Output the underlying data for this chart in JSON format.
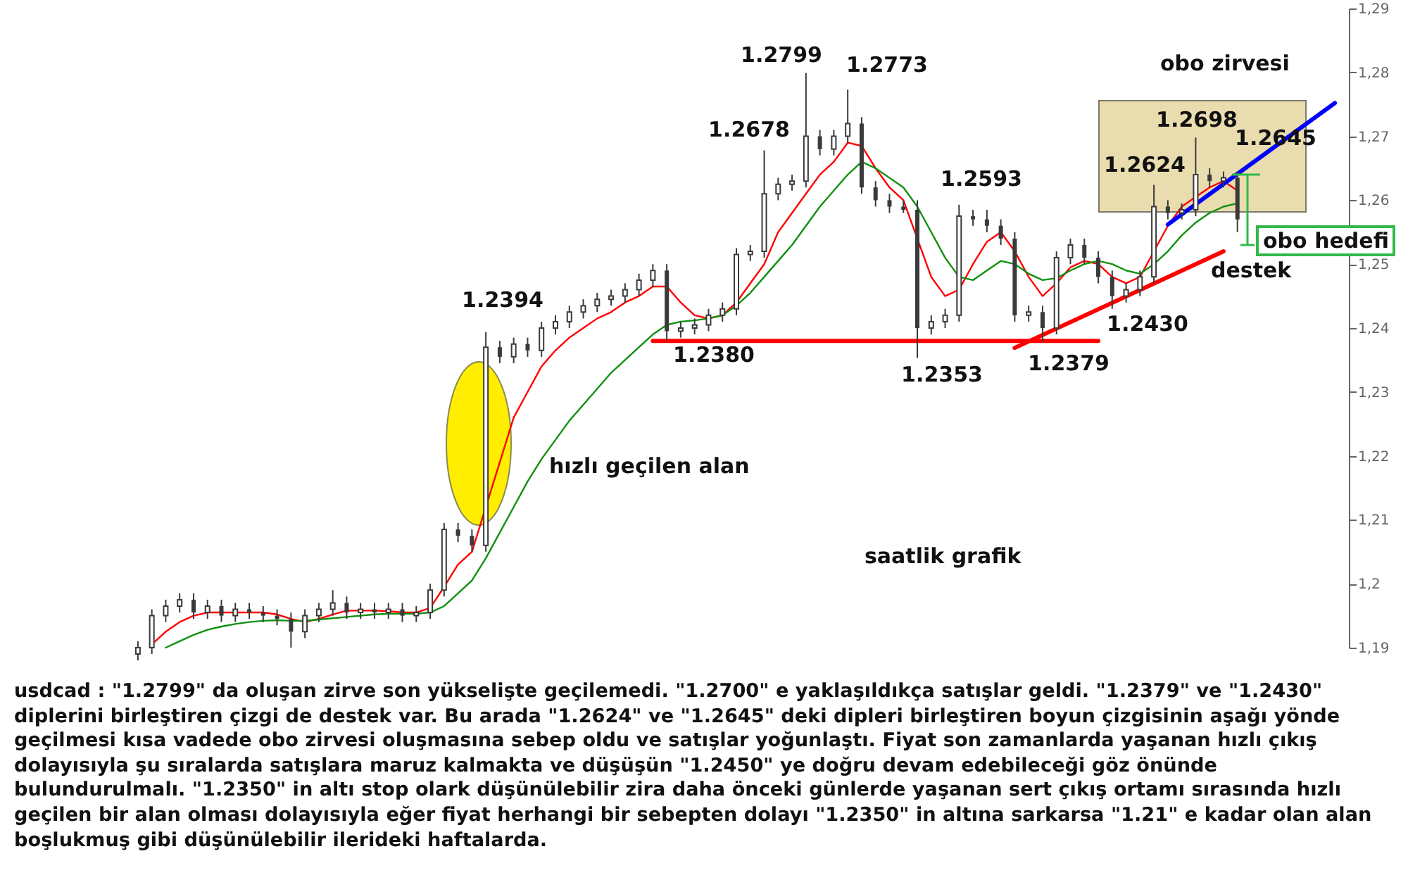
{
  "chart_data": {
    "type": "candlestick",
    "color": "#3a3a3a",
    "tick_labels": "y",
    "categories": [
      null,
      null,
      null,
      null,
      null,
      null,
      null,
      null,
      null,
      null,
      null,
      null,
      null,
      null,
      null,
      null,
      null,
      null,
      null,
      null,
      null,
      null,
      null,
      null,
      null,
      null,
      null,
      null,
      null,
      null,
      null,
      null,
      null,
      null,
      null,
      null,
      null,
      null,
      null,
      null,
      null,
      null,
      null,
      null,
      null,
      null,
      null,
      null,
      null,
      null,
      null,
      null,
      null,
      null,
      null,
      null,
      null,
      null,
      null,
      null,
      null,
      null,
      null,
      null,
      null,
      null,
      null,
      null,
      null,
      null,
      null,
      null,
      null,
      null,
      null,
      null,
      null,
      null,
      null,
      null,
      null,
      null,
      null,
      null,
      null,
      null,
      null
    ],
    "ohlc": [
      [
        1.189,
        1.191,
        1.188,
        1.19
      ],
      [
        1.19,
        1.196,
        1.189,
        1.195
      ],
      [
        1.195,
        1.1975,
        1.194,
        1.1965
      ],
      [
        1.1965,
        1.1985,
        1.1955,
        1.1975
      ],
      [
        1.1975,
        1.1985,
        1.1945,
        1.1955
      ],
      [
        1.1955,
        1.1975,
        1.1945,
        1.1965
      ],
      [
        1.1965,
        1.1975,
        1.194,
        1.195
      ],
      [
        1.195,
        1.197,
        1.194,
        1.196
      ],
      [
        1.196,
        1.197,
        1.1945,
        1.1955
      ],
      [
        1.1955,
        1.1965,
        1.194,
        1.195
      ],
      [
        1.195,
        1.196,
        1.1935,
        1.1945
      ],
      [
        1.1945,
        1.1955,
        1.19,
        1.1925
      ],
      [
        1.1925,
        1.196,
        1.1915,
        1.195
      ],
      [
        1.195,
        1.197,
        1.194,
        1.196
      ],
      [
        1.196,
        1.199,
        1.195,
        1.197
      ],
      [
        1.197,
        1.198,
        1.1945,
        1.1955
      ],
      [
        1.1955,
        1.197,
        1.1945,
        1.196
      ],
      [
        1.196,
        1.197,
        1.1945,
        1.1955
      ],
      [
        1.1955,
        1.197,
        1.1945,
        1.196
      ],
      [
        1.196,
        1.197,
        1.194,
        1.195
      ],
      [
        1.195,
        1.1965,
        1.194,
        1.1955
      ],
      [
        1.1955,
        1.2,
        1.1945,
        1.199
      ],
      [
        1.199,
        1.2095,
        1.198,
        1.2085
      ],
      [
        1.2085,
        1.2095,
        1.2065,
        1.2075
      ],
      [
        1.2075,
        1.2085,
        1.205,
        1.206
      ],
      [
        1.206,
        1.2394,
        1.205,
        1.237
      ],
      [
        1.237,
        1.238,
        1.2345,
        1.2355
      ],
      [
        1.2355,
        1.2385,
        1.2345,
        1.2375
      ],
      [
        1.2375,
        1.2385,
        1.2355,
        1.2365
      ],
      [
        1.2365,
        1.241,
        1.2355,
        1.24
      ],
      [
        1.24,
        1.242,
        1.239,
        1.241
      ],
      [
        1.241,
        1.2435,
        1.24,
        1.2425
      ],
      [
        1.2425,
        1.2445,
        1.2415,
        1.2435
      ],
      [
        1.2435,
        1.2455,
        1.2425,
        1.2445
      ],
      [
        1.2445,
        1.246,
        1.2435,
        1.245
      ],
      [
        1.245,
        1.247,
        1.244,
        1.246
      ],
      [
        1.246,
        1.2485,
        1.245,
        1.2475
      ],
      [
        1.2475,
        1.25,
        1.2465,
        1.249
      ],
      [
        1.249,
        1.25,
        1.238,
        1.2395
      ],
      [
        1.2395,
        1.241,
        1.2385,
        1.24
      ],
      [
        1.24,
        1.2415,
        1.239,
        1.2405
      ],
      [
        1.2405,
        1.243,
        1.2395,
        1.242
      ],
      [
        1.242,
        1.244,
        1.241,
        1.243
      ],
      [
        1.243,
        1.2525,
        1.242,
        1.2515
      ],
      [
        1.2515,
        1.253,
        1.2505,
        1.252
      ],
      [
        1.252,
        1.2678,
        1.251,
        1.261
      ],
      [
        1.261,
        1.2635,
        1.26,
        1.2625
      ],
      [
        1.2625,
        1.264,
        1.2615,
        1.263
      ],
      [
        1.263,
        1.2799,
        1.262,
        1.27
      ],
      [
        1.27,
        1.271,
        1.267,
        1.268
      ],
      [
        1.268,
        1.271,
        1.267,
        1.27
      ],
      [
        1.27,
        1.2773,
        1.269,
        1.272
      ],
      [
        1.272,
        1.273,
        1.261,
        1.262
      ],
      [
        1.262,
        1.263,
        1.259,
        1.26
      ],
      [
        1.26,
        1.261,
        1.258,
        1.259
      ],
      [
        1.259,
        1.26,
        1.258,
        1.2585
      ],
      [
        1.2585,
        1.26,
        1.2353,
        1.24
      ],
      [
        1.24,
        1.242,
        1.239,
        1.241
      ],
      [
        1.241,
        1.243,
        1.24,
        1.242
      ],
      [
        1.242,
        1.2593,
        1.241,
        1.2575
      ],
      [
        1.2575,
        1.2585,
        1.256,
        1.257
      ],
      [
        1.257,
        1.2585,
        1.255,
        1.256
      ],
      [
        1.256,
        1.257,
        1.253,
        1.254
      ],
      [
        1.254,
        1.255,
        1.241,
        1.242
      ],
      [
        1.242,
        1.2435,
        1.241,
        1.2425
      ],
      [
        1.2425,
        1.2435,
        1.2379,
        1.24
      ],
      [
        1.24,
        1.252,
        1.239,
        1.251
      ],
      [
        1.251,
        1.254,
        1.25,
        1.253
      ],
      [
        1.253,
        1.254,
        1.25,
        1.251
      ],
      [
        1.251,
        1.252,
        1.247,
        1.248
      ],
      [
        1.248,
        1.249,
        1.243,
        1.245
      ],
      [
        1.245,
        1.247,
        1.244,
        1.246
      ],
      [
        1.246,
        1.249,
        1.245,
        1.248
      ],
      [
        1.248,
        1.2624,
        1.247,
        1.259
      ],
      [
        1.259,
        1.26,
        1.257,
        1.258
      ],
      [
        1.258,
        1.2595,
        1.257,
        1.2585
      ],
      [
        1.2585,
        1.2698,
        1.2575,
        1.264
      ],
      [
        1.264,
        1.265,
        1.262,
        1.263
      ],
      [
        1.263,
        1.2645,
        1.262,
        1.2635
      ],
      [
        1.2635,
        1.2645,
        1.255,
        1.257
      ],
      null,
      null,
      null,
      null,
      null,
      null,
      null
    ],
    "series": [
      {
        "type": "line",
        "color": "#ff0000",
        "values": [
          null,
          1.1905,
          1.1925,
          1.194,
          1.195,
          1.1955,
          1.1955,
          1.1955,
          1.1955,
          1.1955,
          1.1952,
          1.1945,
          1.194,
          1.1945,
          1.1952,
          1.1958,
          1.1958,
          1.1958,
          1.1957,
          1.1955,
          1.1955,
          1.1962,
          1.1995,
          1.203,
          1.205,
          null,
          1.219,
          1.226,
          1.23,
          1.234,
          1.2365,
          1.2385,
          1.24,
          1.2415,
          1.2425,
          1.244,
          1.245,
          1.2465,
          1.2465,
          1.244,
          1.242,
          1.2415,
          1.242,
          1.244,
          1.247,
          1.25,
          1.255,
          1.258,
          1.261,
          1.264,
          1.266,
          1.269,
          1.2685,
          1.265,
          1.262,
          1.26,
          1.254,
          1.248,
          1.245,
          1.246,
          1.25,
          1.2535,
          1.255,
          1.252,
          1.248,
          1.245,
          1.247,
          1.2495,
          1.2505,
          1.25,
          1.248,
          1.247,
          1.248,
          1.252,
          1.256,
          1.259,
          1.2605,
          1.262,
          1.263,
          1.2615,
          null,
          null,
          null,
          null,
          null,
          null,
          null
        ]
      },
      {
        "type": "line",
        "color": "#109010",
        "values": [
          null,
          null,
          1.19,
          1.191,
          1.192,
          1.1928,
          1.1933,
          1.1937,
          1.194,
          1.1942,
          1.1943,
          1.1942,
          1.1942,
          1.1944,
          1.1946,
          1.1948,
          1.195,
          1.1952,
          1.1953,
          1.1953,
          1.1953,
          1.1955,
          1.1965,
          1.1985,
          1.2005,
          1.204,
          1.208,
          1.212,
          1.216,
          1.2195,
          1.2225,
          1.2255,
          1.228,
          1.2305,
          1.233,
          1.235,
          1.237,
          1.239,
          1.2405,
          1.241,
          1.2412,
          1.2415,
          1.242,
          1.2435,
          1.2455,
          1.248,
          1.2505,
          1.253,
          1.256,
          1.259,
          1.2615,
          1.264,
          1.266,
          1.265,
          1.2635,
          1.262,
          1.259,
          1.255,
          1.251,
          1.248,
          1.2475,
          1.249,
          1.2505,
          1.25,
          1.2485,
          1.2475,
          1.2478,
          1.249,
          1.25,
          1.2505,
          1.25,
          1.249,
          1.2485,
          1.25,
          1.252,
          1.2545,
          1.2565,
          1.258,
          1.259,
          1.2595,
          null,
          null,
          null,
          null,
          null,
          null,
          null
        ]
      },
      {
        "type": "line",
        "color": "#ff0000",
        "values": [
          null,
          null,
          null,
          null,
          null,
          null,
          null,
          null,
          null,
          null,
          null,
          null,
          null,
          null,
          null,
          null,
          null,
          null,
          null,
          null,
          null,
          null,
          null,
          null,
          null,
          null,
          null,
          null,
          null,
          null,
          null,
          null,
          null,
          null,
          null,
          null,
          null,
          1.238,
          null,
          null,
          null,
          null,
          null,
          null,
          null,
          null,
          null,
          null,
          null,
          null,
          null,
          null,
          null,
          null,
          null,
          null,
          null,
          null,
          null,
          null,
          null,
          null,
          null,
          null,
          null,
          null,
          null,
          null,
          null,
          1.238,
          null,
          null,
          null,
          null,
          null,
          null,
          null,
          null,
          null,
          null,
          null,
          null,
          null,
          null,
          null,
          null,
          null
        ]
      },
      {
        "type": "line",
        "color": "#ff0000",
        "values": [
          null,
          null,
          null,
          null,
          null,
          null,
          null,
          null,
          null,
          null,
          null,
          null,
          null,
          null,
          null,
          null,
          null,
          null,
          null,
          null,
          null,
          null,
          null,
          null,
          null,
          null,
          null,
          null,
          null,
          null,
          null,
          null,
          null,
          null,
          null,
          null,
          null,
          null,
          null,
          null,
          null,
          null,
          null,
          null,
          null,
          null,
          null,
          null,
          null,
          null,
          null,
          null,
          null,
          null,
          null,
          null,
          null,
          null,
          null,
          null,
          null,
          null,
          null,
          1.2369,
          null,
          null,
          null,
          null,
          null,
          null,
          null,
          null,
          null,
          null,
          null,
          null,
          null,
          null,
          1.252,
          null,
          null,
          null,
          null,
          null,
          null,
          null,
          null
        ]
      },
      {
        "type": "line",
        "color": "#0000ff",
        "values": [
          null,
          null,
          null,
          null,
          null,
          null,
          null,
          null,
          null,
          null,
          null,
          null,
          null,
          null,
          null,
          null,
          null,
          null,
          null,
          null,
          null,
          null,
          null,
          null,
          null,
          null,
          null,
          null,
          null,
          null,
          null,
          null,
          null,
          null,
          null,
          null,
          null,
          null,
          null,
          null,
          null,
          null,
          null,
          null,
          null,
          null,
          null,
          null,
          null,
          null,
          null,
          null,
          null,
          null,
          null,
          null,
          null,
          null,
          null,
          null,
          null,
          null,
          null,
          null,
          null,
          null,
          null,
          null,
          null,
          null,
          null,
          null,
          null,
          null,
          1.2562,
          null,
          null,
          null,
          null,
          null,
          null,
          null,
          null,
          null,
          null,
          null,
          1.2752
        ]
      }
    ],
    "ylim": [
      1.19,
      1.29
    ],
    "yticks": [
      {
        "value": 1.19,
        "label": "1,19"
      },
      {
        "value": 1.2,
        "label": "1,2"
      },
      {
        "value": 1.21,
        "label": "1,21"
      },
      {
        "value": 1.22,
        "label": "1,22"
      },
      {
        "value": 1.23,
        "label": "1,23"
      },
      {
        "value": 1.24,
        "label": "1,24"
      },
      {
        "value": 1.25,
        "label": "1,25"
      },
      {
        "value": 1.26,
        "label": "1,26"
      },
      {
        "value": 1.27,
        "label": "1,27"
      },
      {
        "value": 1.28,
        "label": "1,28"
      },
      {
        "value": 1.29,
        "label": "1,29"
      }
    ],
    "annotations": [
      "1.2394",
      "1.2380",
      "1.2678",
      "1.2799",
      "1.2773",
      "1.2593",
      "1.2353",
      "1.2379",
      "1.2430",
      "1.2624",
      "1.2698",
      "1.2645",
      "hızlı geçilen alan",
      "saatlik grafik",
      "obo zirvesi",
      "destek",
      "obo hedefi",
      "usdcad : \"1.2799\" da oluşan zirve son yükselişte geçilemedi. \"1.2700\" e yaklaşıldıkça satışlar geldi. \"1.2379\" ve \"1.2430\" diplerini birleştiren çizgi de destek var. Bu arada \"1.2624\" ve \"1.2645\" deki dipleri birleştiren boyun çizgisinin aşağı yönde geçilmesi kısa vadede obo zirvesi oluşmasına sebep oldu ve satışlar yoğunlaştı. Fiyat son zamanlarda yaşanan hızlı çıkış dolayısıyla şu sıralarda satışlara maruz kalmakta ve düşüşün \"1.2450\" ye doğru devam edebileceği göz önünde bulundurulmalı. \"1.2350\" in altı stop olark düşünülebilir zira daha önceki günlerde yaşanan sert çıkış ortamı sırasında hızlı geçilen bir alan olması dolayısıyla eğer fiyat herhangi bir sebepten dolayı \"1.2350\" in altına sarkarsa \"1.21\" e kadar olan alan boşlukmuş gibi düşünülebilir ilerideki haftalarda."
    ]
  }
}
